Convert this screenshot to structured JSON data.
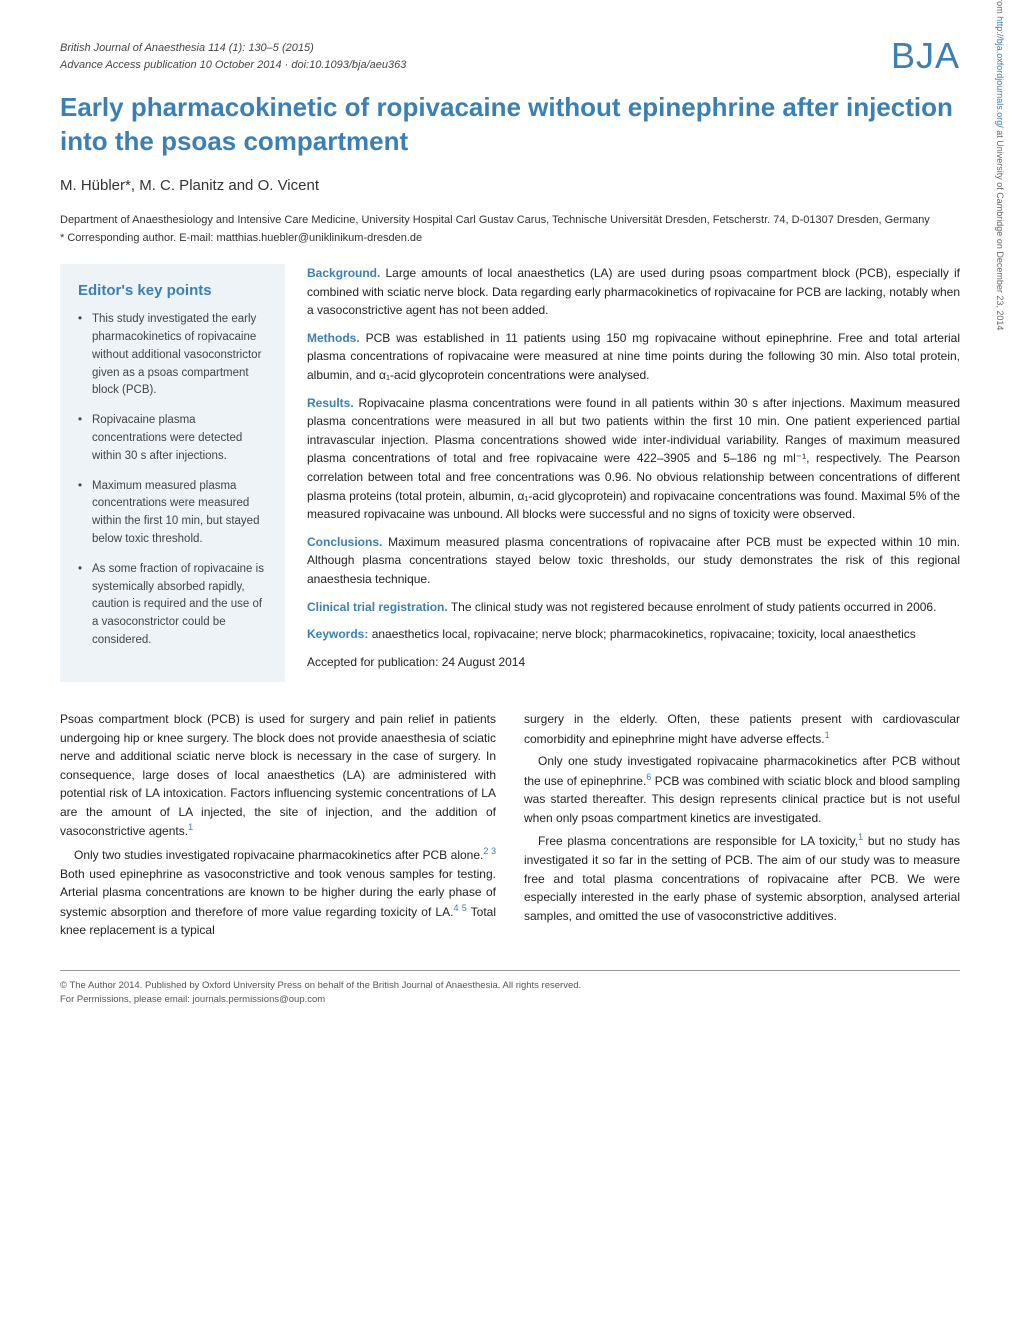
{
  "journal_meta": {
    "line1": "British Journal of Anaesthesia 114 (1): 130–5 (2015)",
    "line2": "Advance Access publication 10 October 2014 · doi:10.1093/bja/aeu363"
  },
  "logo_text": "BJA",
  "title": "Early pharmacokinetic of ropivacaine without epinephrine after injection into the psoas compartment",
  "authors": "M. Hübler*, M. C. Planitz and O. Vicent",
  "affiliation": "Department of Anaesthesiology and Intensive Care Medicine, University Hospital Carl Gustav Carus, Technische Universität Dresden, Fetscherstr. 74, D-01307 Dresden, Germany",
  "corresponding": "* Corresponding author. E-mail: matthias.huebler@uniklinikum-dresden.de",
  "key_points": {
    "heading": "Editor's key points",
    "items": [
      "This study investigated the early pharmacokinetics of ropivacaine without additional vasoconstrictor given as a psoas compartment block (PCB).",
      "Ropivacaine plasma concentrations were detected within 30 s after injections.",
      "Maximum measured plasma concentrations were measured within the first 10 min, but stayed below toxic threshold.",
      "As some fraction of ropivacaine is systemically absorbed rapidly, caution is required and the use of a vasoconstrictor could be considered."
    ]
  },
  "abstract": {
    "background": {
      "label": "Background.",
      "text": "Large amounts of local anaesthetics (LA) are used during psoas compartment block (PCB), especially if combined with sciatic nerve block. Data regarding early pharmacokinetics of ropivacaine for PCB are lacking, notably when a vasoconstrictive agent has not been added."
    },
    "methods": {
      "label": "Methods.",
      "text": "PCB was established in 11 patients using 150 mg ropivacaine without epinephrine. Free and total arterial plasma concentrations of ropivacaine were measured at nine time points during the following 30 min. Also total protein, albumin, and α₁-acid glycoprotein concentrations were analysed."
    },
    "results": {
      "label": "Results.",
      "text": "Ropivacaine plasma concentrations were found in all patients within 30 s after injections. Maximum measured plasma concentrations were measured in all but two patients within the first 10 min. One patient experienced partial intravascular injection. Plasma concentrations showed wide inter-individual variability. Ranges of maximum measured plasma concentrations of total and free ropivacaine were 422–3905 and 5–186 ng ml⁻¹, respectively. The Pearson correlation between total and free concentrations was 0.96. No obvious relationship between concentrations of different plasma proteins (total protein, albumin, α₁-acid glycoprotein) and ropivacaine concentrations was found. Maximal 5% of the measured ropivacaine was unbound. All blocks were successful and no signs of toxicity were observed."
    },
    "conclusions": {
      "label": "Conclusions.",
      "text": "Maximum measured plasma concentrations of ropivacaine after PCB must be expected within 10 min. Although plasma concentrations stayed below toxic thresholds, our study demonstrates the risk of this regional anaesthesia technique."
    },
    "trial": {
      "label": "Clinical trial registration.",
      "text": "The clinical study was not registered because enrolment of study patients occurred in 2006."
    },
    "keywords": {
      "label": "Keywords:",
      "text": "anaesthetics local, ropivacaine; nerve block; pharmacokinetics, ropivacaine; toxicity, local anaesthetics"
    },
    "accepted": "Accepted for publication: 24 August 2014"
  },
  "body": {
    "col1": {
      "p1": "Psoas compartment block (PCB) is used for surgery and pain relief in patients undergoing hip or knee surgery. The block does not provide anaesthesia of sciatic nerve and additional sciatic nerve block is necessary in the case of surgery. In consequence, large doses of local anaesthetics (LA) are administered with potential risk of LA intoxication. Factors influencing systemic concentrations of LA are the amount of LA injected, the site of injection, and the addition of vasoconstrictive agents.",
      "p1_ref": "1",
      "p2a": "Only two studies investigated ropivacaine pharmacokinetics after PCB alone.",
      "p2_ref1": "2 3",
      "p2b": " Both used epinephrine as vasoconstrictive and took venous samples for testing. Arterial plasma concentrations are known to be higher during the early phase of systemic absorption and therefore of more value regarding toxicity of LA.",
      "p2_ref2": "4 5",
      "p2c": " Total knee replacement is a typical"
    },
    "col2": {
      "p1": "surgery in the elderly. Often, these patients present with cardiovascular comorbidity and epinephrine might have adverse effects.",
      "p1_ref": "1",
      "p2a": "Only one study investigated ropivacaine pharmacokinetics after PCB without the use of epinephrine.",
      "p2_ref": "6",
      "p2b": " PCB was combined with sciatic block and blood sampling was started thereafter. This design represents clinical practice but is not useful when only psoas compartment kinetics are investigated.",
      "p3a": "Free plasma concentrations are responsible for LA toxicity,",
      "p3_ref": "1",
      "p3b": " but no study has investigated it so far in the setting of PCB. The aim of our study was to measure free and total plasma concentrations of ropivacaine after PCB. We were especially interested in the early phase of systemic absorption, analysed arterial samples, and omitted the use of vasoconstrictive additives."
    }
  },
  "footer": {
    "line1": "© The Author 2014. Published by Oxford University Press on behalf of the British Journal of Anaesthesia. All rights reserved.",
    "line2": "For Permissions, please email: journals.permissions@oup.com"
  },
  "side_note": {
    "pre": "Downloaded from ",
    "url": "http://bja.oxfordjournals.org/",
    "post": " at University of Cambridge on December 23, 2014"
  },
  "colors": {
    "accent": "#3b7fb5",
    "keypoints_bg": "#eef3f7",
    "body_text": "#222222",
    "meta_text": "#444444",
    "footer_text": "#555555"
  }
}
